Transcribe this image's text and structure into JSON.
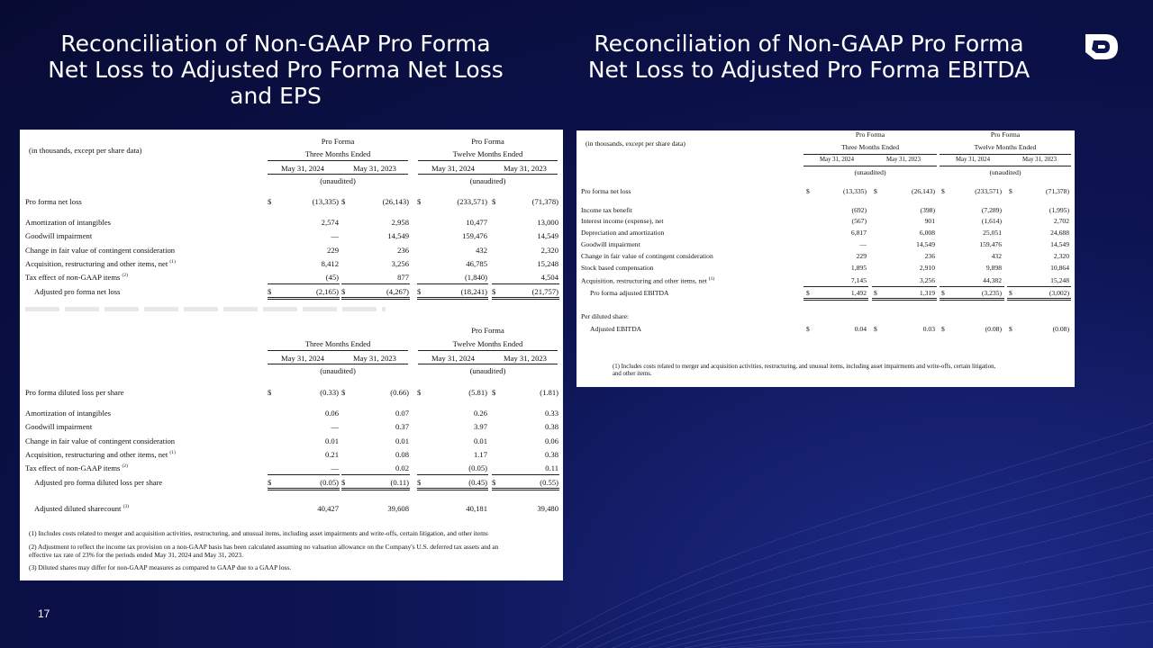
{
  "page_number": "17",
  "left_title": "Reconciliation of Non-GAAP Pro Forma\nNet Loss to Adjusted Pro Forma Net Loss\nand EPS",
  "right_title": "Reconciliation of Non-GAAP Pro Forma\nNet Loss to Adjusted Pro Forma EBITDA",
  "logo_icon": "brand-logo-icon",
  "headers": {
    "units_note": "(in thousands, except per share data)",
    "pro_forma": "Pro Forma",
    "three_months": "Three Months Ended",
    "twelve_months": "Twelve Months Ended",
    "date1": "May 31, 2024",
    "date2": "May 31, 2023",
    "unaudited": "(unaudited)",
    "dollar": "$"
  },
  "net_loss_table": {
    "rows": [
      {
        "label": "Pro forma net loss",
        "values": [
          "(13,335)",
          "(26,143)",
          "(233,571)",
          "(71,378)"
        ],
        "dollar": true
      },
      {
        "label": "Amortization of intangibles",
        "values": [
          "2,574",
          "2,958",
          "10,477",
          "13,000"
        ]
      },
      {
        "label": "Goodwill impairment",
        "values": [
          "—",
          "14,549",
          "159,476",
          "14,549"
        ]
      },
      {
        "label": "Change in fair value of contingent consideration",
        "values": [
          "229",
          "236",
          "432",
          "2,320"
        ]
      },
      {
        "label": "Acquisition, restructuring and other items, net",
        "sup": "(1)",
        "values": [
          "8,412",
          "3,256",
          "46,785",
          "15,248"
        ]
      },
      {
        "label": "Tax effect of non-GAAP items",
        "sup": "(2)",
        "values": [
          "(45)",
          "877",
          "(1,840)",
          "4,504"
        ]
      },
      {
        "label": "Adjusted pro forma net loss",
        "values": [
          "(2,165)",
          "(4,267)",
          "(18,241)",
          "(21,757)"
        ],
        "dollar": true
      }
    ]
  },
  "eps_table": {
    "rows": [
      {
        "label": "Pro forma diluted loss per share",
        "values": [
          "(0.33)",
          "(0.66)",
          "(5.81)",
          "(1.81)"
        ],
        "dollar": true
      },
      {
        "label": "Amortization of intangibles",
        "values": [
          "0.06",
          "0.07",
          "0.26",
          "0.33"
        ]
      },
      {
        "label": "Goodwill impairment",
        "values": [
          "—",
          "0.37",
          "3.97",
          "0.38"
        ]
      },
      {
        "label": "Change in fair value of contingent consideration",
        "values": [
          "0.01",
          "0.01",
          "0.01",
          "0.06"
        ]
      },
      {
        "label": "Acquisition, restructuring and other items, net",
        "sup": "(1)",
        "values": [
          "0.21",
          "0.08",
          "1.17",
          "0.38"
        ]
      },
      {
        "label": "Tax effect of non-GAAP items",
        "sup": "(2)",
        "values": [
          "—",
          "0.02",
          "(0.05)",
          "0.11"
        ]
      },
      {
        "label": "Adjusted pro forma diluted loss per share",
        "values": [
          "(0.05)",
          "(0.11)",
          "(0.45)",
          "(0.55)"
        ],
        "dollar": true
      },
      {
        "label": "Adjusted diluted sharecount",
        "sup": "(3)",
        "values": [
          "40,427",
          "39,608",
          "40,181",
          "39,480"
        ]
      }
    ],
    "footnotes": [
      "(1) Includes costs related to merger and acquisition activities, restructuring, and unusual items, including asset impairments and write-offs, certain litigation, and other items",
      "(2) Adjustment to reflect the income tax provision on a non-GAAP basis has been calculated assuming no valuation allowance on the Company's U.S. deferred tax assets and an",
      "effective tax rate of 23% for the periods ended May 31, 2024 and May 31, 2023.",
      "(3) Diluted shares may differ for non-GAAP measures as compared to GAAP due to a GAAP loss."
    ]
  },
  "ebitda_table": {
    "rows": [
      {
        "label": "Pro forma net loss",
        "values": [
          "(13,335)",
          "(26,143)",
          "(233,571)",
          "(71,378)"
        ],
        "dollar": true
      },
      {
        "label": "Income tax benefit",
        "values": [
          "(692)",
          "(398)",
          "(7,289)",
          "(1,995)"
        ]
      },
      {
        "label": "Interest income (expense), net",
        "values": [
          "(567)",
          "901",
          "(1,614)",
          "2,702"
        ]
      },
      {
        "label": "Depreciation and amortization",
        "values": [
          "6,817",
          "6,008",
          "25,051",
          "24,688"
        ]
      },
      {
        "label": "Goodwill impairment",
        "values": [
          "—",
          "14,549",
          "159,476",
          "14,549"
        ]
      },
      {
        "label": "Change in fair value of contingent consideration",
        "values": [
          "229",
          "236",
          "432",
          "2,320"
        ]
      },
      {
        "label": "Stock based compensation",
        "values": [
          "1,895",
          "2,910",
          "9,898",
          "10,864"
        ]
      },
      {
        "label": "Acquisition, restructuring and other items, net",
        "sup": "(1)",
        "values": [
          "7,145",
          "3,256",
          "44,382",
          "15,248"
        ]
      },
      {
        "label": "Pro forma adjusted EBITDA",
        "values": [
          "1,492",
          "1,319",
          "(3,235)",
          "(3,002)"
        ],
        "dollar": true
      },
      {
        "label": "Per diluted share:",
        "values": []
      },
      {
        "label": "Adjusted EBITDA",
        "values": [
          "0.04",
          "0.03",
          "(0.08)",
          "(0.08)"
        ],
        "dollar": true
      }
    ],
    "footnotes": [
      "(1) Includes costs related to merger and acquisition activities, restructuring, and unusual items, including asset impairments and write-offs, certain litigation,",
      "and other items."
    ]
  }
}
